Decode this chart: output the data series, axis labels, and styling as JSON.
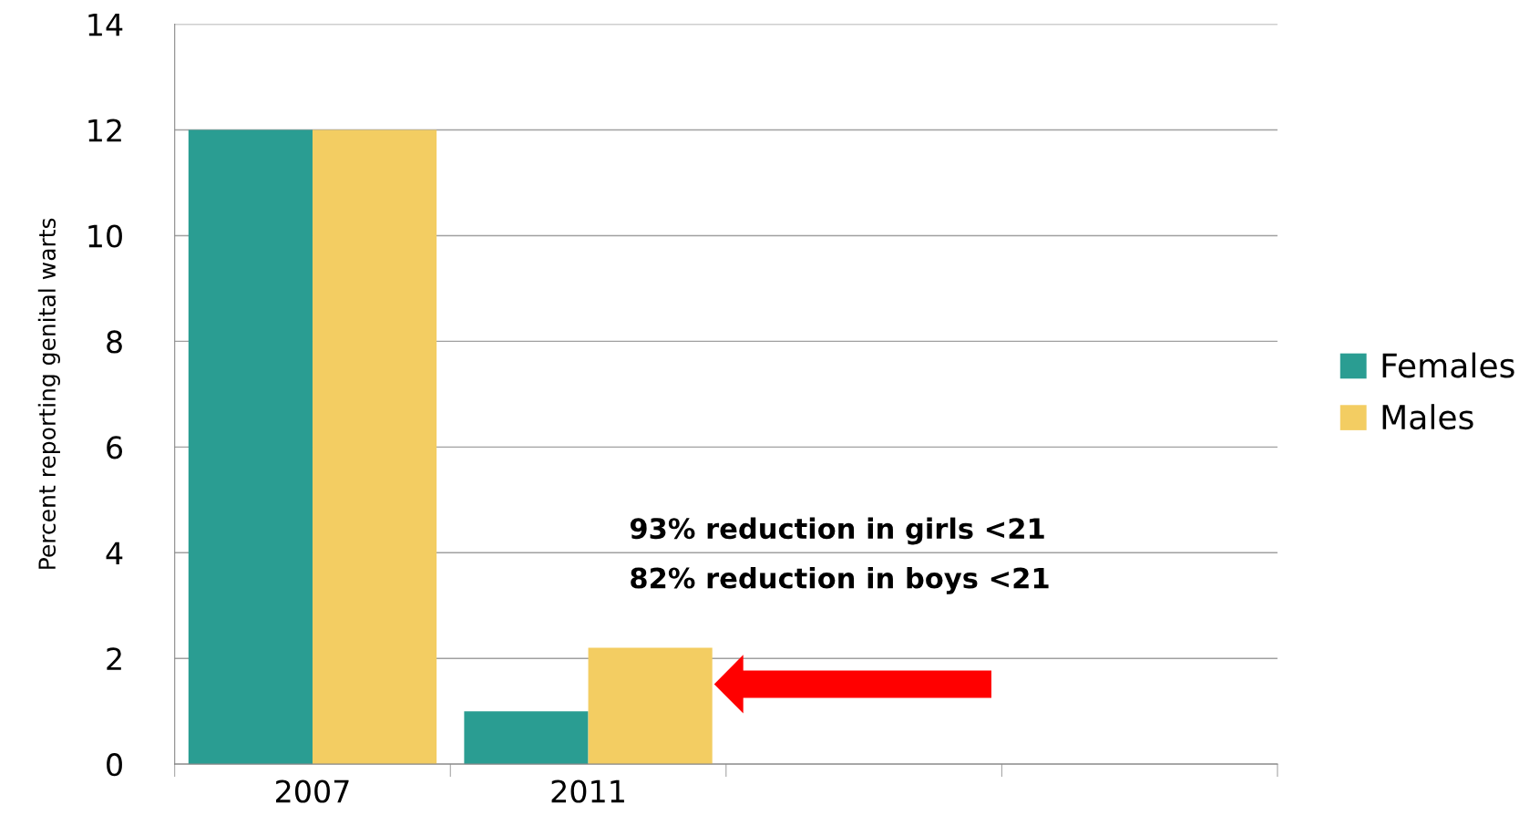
{
  "chart_data": {
    "type": "bar",
    "ylabel": "Percent reporting genital warts",
    "categories": [
      "2007",
      "2011",
      null,
      null
    ],
    "series": [
      {
        "name": "Females",
        "color": "#2a9d92",
        "values": [
          12,
          1,
          null,
          null
        ]
      },
      {
        "name": "Males",
        "color": "#f3cd62",
        "values": [
          12,
          2.2,
          null,
          null
        ]
      }
    ],
    "ylim": [
      0,
      14
    ],
    "yticks": [
      0,
      2,
      4,
      6,
      8,
      10,
      12,
      14
    ],
    "grid": "y",
    "legend": "right",
    "annotations": [
      "93% reduction in girls <21",
      "82% reduction in boys <21"
    ]
  }
}
